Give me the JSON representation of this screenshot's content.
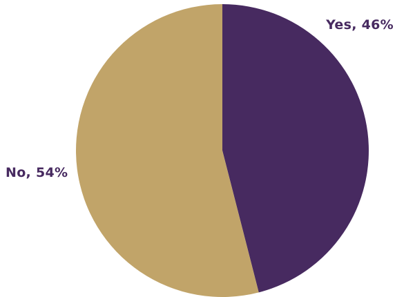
{
  "chart_data": {
    "type": "pie",
    "title": "",
    "slices": [
      {
        "label": "Yes, 46%",
        "category": "Yes",
        "value": 46,
        "color": "#472a60"
      },
      {
        "label": "No, 54%",
        "category": "No",
        "value": 54,
        "color": "#c1a469"
      }
    ],
    "start": "12 o'clock",
    "direction": "clockwise",
    "legend": "none",
    "label_color": "#472a60"
  }
}
